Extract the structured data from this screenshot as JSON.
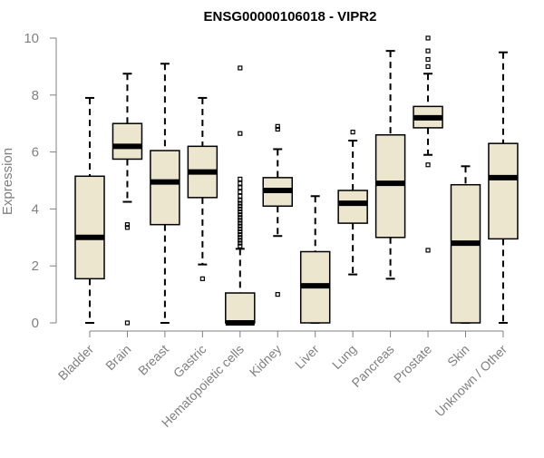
{
  "chart_data": {
    "type": "boxplot",
    "title": "ENSG00000106018 - VIPR2",
    "xlabel": "",
    "ylabel": "Expression",
    "ylim": [
      0,
      10
    ],
    "yticks": [
      0,
      2,
      4,
      6,
      8,
      10
    ],
    "box_color": "#ede6cf",
    "categories": [
      "Bladder",
      "Brain",
      "Breast",
      "Gastric",
      "Hematopoietic cells",
      "Kidney",
      "Liver",
      "Lung",
      "Pancreas",
      "Prostate",
      "Skin",
      "Unknown / Other"
    ],
    "boxes": [
      {
        "name": "Bladder",
        "min": 0.0,
        "q1": 1.55,
        "median": 3.0,
        "q3": 5.15,
        "max": 7.9,
        "outliers": []
      },
      {
        "name": "Brain",
        "min": 4.25,
        "q1": 5.75,
        "median": 6.2,
        "q3": 7.0,
        "max": 8.75,
        "outliers": [
          3.35,
          3.45,
          0.0
        ]
      },
      {
        "name": "Breast",
        "min": 0.0,
        "q1": 3.45,
        "median": 4.95,
        "q3": 6.05,
        "max": 9.1,
        "outliers": []
      },
      {
        "name": "Gastric",
        "min": 2.05,
        "q1": 4.4,
        "median": 5.3,
        "q3": 6.2,
        "max": 7.9,
        "outliers": [
          1.55
        ]
      },
      {
        "name": "Hematopoietic cells",
        "min": 0.0,
        "q1": 0.0,
        "median": 0.0,
        "q3": 1.05,
        "max": 2.6,
        "outliers": [
          2.7,
          2.8,
          2.9,
          3.0,
          3.1,
          3.2,
          3.3,
          3.4,
          3.5,
          3.6,
          3.7,
          3.8,
          3.9,
          4.0,
          4.1,
          4.2,
          4.3,
          4.45,
          4.6,
          4.75,
          4.9,
          5.05,
          6.65,
          8.95
        ]
      },
      {
        "name": "Kidney",
        "min": 3.05,
        "q1": 4.1,
        "median": 4.65,
        "q3": 5.1,
        "max": 6.1,
        "outliers": [
          1.0,
          6.8,
          6.9
        ]
      },
      {
        "name": "Liver",
        "min": 0.0,
        "q1": 0.0,
        "median": 1.3,
        "q3": 2.5,
        "max": 4.45,
        "outliers": []
      },
      {
        "name": "Lung",
        "min": 1.7,
        "q1": 3.5,
        "median": 4.2,
        "q3": 4.65,
        "max": 6.4,
        "outliers": [
          6.7
        ]
      },
      {
        "name": "Pancreas",
        "min": 1.55,
        "q1": 3.0,
        "median": 4.9,
        "q3": 6.6,
        "max": 9.55,
        "outliers": []
      },
      {
        "name": "Prostate",
        "min": 5.9,
        "q1": 6.85,
        "median": 7.2,
        "q3": 7.6,
        "max": 8.75,
        "outliers": [
          5.55,
          2.55,
          9.0,
          9.25,
          9.55,
          10.0
        ]
      },
      {
        "name": "Skin",
        "min": 0.0,
        "q1": 0.0,
        "median": 2.8,
        "q3": 4.85,
        "max": 5.5,
        "outliers": []
      },
      {
        "name": "Unknown / Other",
        "min": 0.0,
        "q1": 2.95,
        "median": 5.1,
        "q3": 6.3,
        "max": 9.5,
        "outliers": []
      }
    ]
  }
}
